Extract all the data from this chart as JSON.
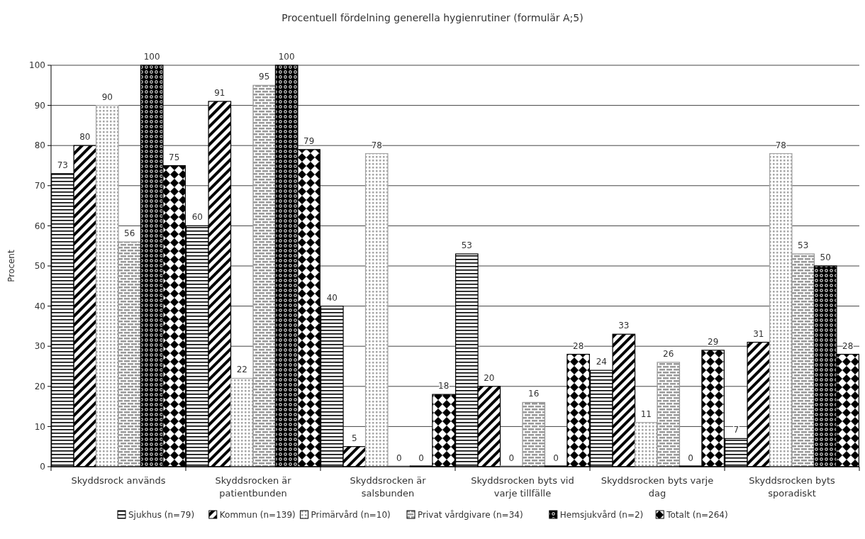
{
  "chart_data": {
    "type": "bar",
    "title": "Procentuell fördelning generella hygienrutiner (formulär A;5)",
    "ylabel": "Procent",
    "categories": [
      "Skyddsrock används",
      "Skyddsrocken är patientbunden",
      "Skyddsrocken är salsbunden",
      "Skyddsrocken byts vid varje tillfälle",
      "Skyddsrocken byts varje dag",
      "Skyddsrocken byts sporadiskt"
    ],
    "series": [
      {
        "name": "Sjukhus (n=79)",
        "color": "#000000",
        "values": [
          73,
          60,
          40,
          53,
          24,
          7
        ]
      },
      {
        "name": "Kommun (n=139)",
        "color": "#000000",
        "values": [
          80,
          91,
          5,
          20,
          33,
          31
        ]
      },
      {
        "name": "Primärvård (n=10)",
        "color": "#a6a6a6",
        "values": [
          90,
          22,
          78,
          0,
          11,
          78
        ]
      },
      {
        "name": "Privat vårdgivare (n=34)",
        "color": "#999999",
        "values": [
          56,
          95,
          0,
          16,
          26,
          53
        ]
      },
      {
        "name": "Hemsjukvård (n=2)",
        "color": "#000000",
        "values": [
          100,
          100,
          0,
          0,
          0,
          50
        ]
      },
      {
        "name": "Totalt (n=264)",
        "color": "#000000",
        "values": [
          75,
          79,
          18,
          28,
          29,
          28
        ]
      }
    ],
    "ylim": [
      0,
      100
    ],
    "yticks": [
      0,
      10,
      20,
      30,
      40,
      50,
      60,
      70,
      80,
      90,
      100
    ],
    "grid": "y",
    "legend": "bottom",
    "data_labels": true
  }
}
